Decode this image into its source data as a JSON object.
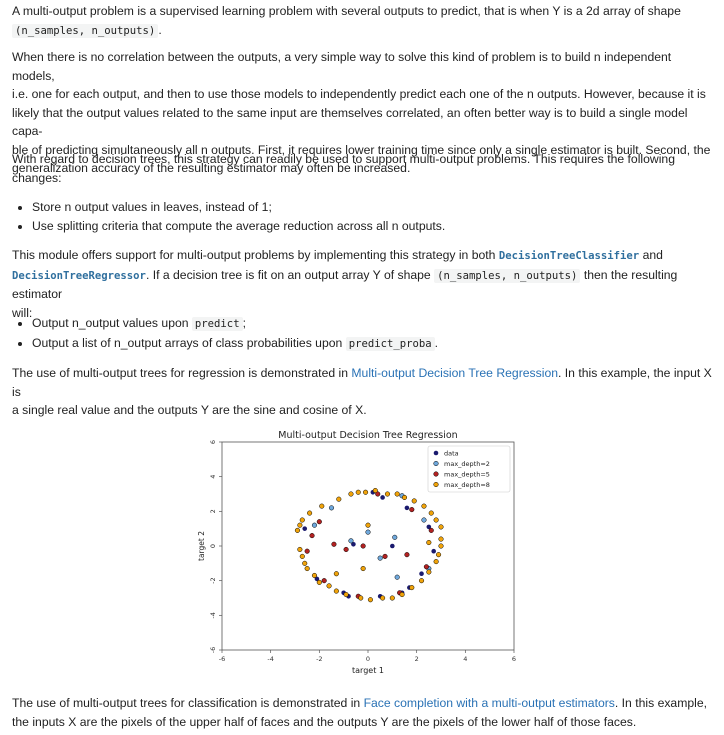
{
  "p1": {
    "text": "A multi-output problem is a supervised learning problem with several outputs to predict, that is when Y is a 2d array of shape",
    "code": "(n_samples, n_outputs)",
    "end": "."
  },
  "p2": {
    "l1": "When there is no correlation between the outputs, a very simple way to solve this kind of problem is to build n independent models,",
    "l2": "i.e. one for each output, and then to use those models to independently predict each one of the n outputs. However, because it is",
    "l3": "likely that the output values related to the same input are themselves correlated, an often better way is to build a single model capa-",
    "l4": "ble of predicting simultaneously all n outputs. First, it requires lower training time since only a single estimator is built. Second, the",
    "l5": "generalization accuracy of the resulting estimator may often be increased."
  },
  "p3": {
    "l1": "With regard to decision trees, this strategy can readily be used to support multi-output problems. This requires the following",
    "l2": "changes:"
  },
  "list1": [
    "Store n output values in leaves, instead of 1;",
    "Use splitting criteria that compute the average reduction across all n outputs."
  ],
  "p4": {
    "t1": "This module offers support for multi-output problems by implementing this strategy in both",
    "ref1": "DecisionTreeClassifier",
    "t2": "and",
    "ref2": "DecisionTreeRegressor",
    "t3": ". If a decision tree is fit on an output array Y of shape",
    "code": "(n_samples, n_outputs)",
    "t4": "then the resulting estimator",
    "t5": "will:"
  },
  "list2": [
    {
      "text": "Output n_output values upon",
      "code": "predict",
      "end": ";"
    },
    {
      "text": "Output a list of n_output arrays of class probabilities upon",
      "code": "predict_proba",
      "end": "."
    }
  ],
  "p5": {
    "t1": "The use of multi-output trees for regression is demonstrated in",
    "link": "Multi-output Decision Tree Regression",
    "t2": ". In this example, the input X is",
    "l2": "a single real value and the outputs Y are the sine and cosine of X."
  },
  "p6": {
    "t1": "The use of multi-output trees for classification is demonstrated in",
    "link": "Face completion with a multi-output estimators",
    "t2": ". In this example,",
    "l2": "the inputs X are the pixels of the upper half of faces and the outputs Y are the pixels of the lower half of those faces."
  },
  "chart_data": {
    "type": "scatter",
    "title": "Multi-output Decision Tree Regression",
    "xlabel": "target 1",
    "ylabel": "target 2",
    "xlim": [
      -6,
      6
    ],
    "ylim": [
      -6,
      6
    ],
    "xticks": [
      "-6",
      "-4",
      "-2",
      "0",
      "2",
      "4",
      "6"
    ],
    "yticks": [
      "-6",
      "-4",
      "-2",
      "0",
      "2",
      "4",
      "6"
    ],
    "legend_position": "top-right",
    "series": [
      {
        "name": "data",
        "color": "#1a1a6e",
        "points": [
          [
            0.2,
            3.1
          ],
          [
            0.6,
            2.8
          ],
          [
            1.6,
            2.2
          ],
          [
            2.5,
            1.1
          ],
          [
            -2.6,
            1.0
          ],
          [
            -2.1,
            -1.9
          ],
          [
            -1.0,
            -2.7
          ],
          [
            0.5,
            -2.9
          ],
          [
            1.4,
            -2.7
          ],
          [
            2.2,
            -1.6
          ],
          [
            -0.8,
            -2.9
          ],
          [
            1.7,
            -2.4
          ],
          [
            2.7,
            -0.3
          ],
          [
            -0.6,
            0.1
          ],
          [
            1.0,
            0.0
          ]
        ]
      },
      {
        "name": "max_depth=2",
        "color": "#6fa8dc",
        "points": [
          [
            -2.2,
            1.2
          ],
          [
            0.0,
            0.8
          ],
          [
            0.5,
            -0.7
          ],
          [
            1.2,
            -1.8
          ],
          [
            2.3,
            1.5
          ],
          [
            -1.5,
            2.2
          ],
          [
            -0.7,
            0.3
          ],
          [
            1.1,
            0.5
          ],
          [
            1.4,
            2.9
          ],
          [
            2.5,
            -1.3
          ]
        ]
      },
      {
        "name": "max_depth=5",
        "color": "#b22222",
        "points": [
          [
            -2.3,
            0.6
          ],
          [
            -2.0,
            1.4
          ],
          [
            0.4,
            3.0
          ],
          [
            1.8,
            2.1
          ],
          [
            2.6,
            0.9
          ],
          [
            2.4,
            -1.2
          ],
          [
            1.3,
            -2.7
          ],
          [
            -0.4,
            -2.9
          ],
          [
            -1.8,
            -2.0
          ],
          [
            -1.4,
            0.1
          ],
          [
            -0.9,
            -0.2
          ],
          [
            -0.2,
            0.0
          ],
          [
            0.7,
            -0.6
          ],
          [
            1.6,
            -0.5
          ],
          [
            -2.5,
            -0.3
          ]
        ]
      },
      {
        "name": "max_depth=8",
        "color": "#f0a30a",
        "points": [
          [
            -2.8,
            -0.2
          ],
          [
            -2.7,
            -0.6
          ],
          [
            -2.6,
            -1.0
          ],
          [
            -2.5,
            -1.3
          ],
          [
            -2.2,
            -1.7
          ],
          [
            -2.9,
            0.9
          ],
          [
            -2.8,
            1.2
          ],
          [
            -2.7,
            1.5
          ],
          [
            -2.4,
            1.9
          ],
          [
            -1.9,
            2.3
          ],
          [
            -1.2,
            2.7
          ],
          [
            -0.7,
            3.0
          ],
          [
            -0.4,
            3.1
          ],
          [
            -0.1,
            3.1
          ],
          [
            0.3,
            3.2
          ],
          [
            0.8,
            3.0
          ],
          [
            1.2,
            3.0
          ],
          [
            1.5,
            2.8
          ],
          [
            1.9,
            2.6
          ],
          [
            2.3,
            2.3
          ],
          [
            2.6,
            1.9
          ],
          [
            2.8,
            1.5
          ],
          [
            3.0,
            1.1
          ],
          [
            3.0,
            0.4
          ],
          [
            3.0,
            0.0
          ],
          [
            2.9,
            -0.5
          ],
          [
            2.8,
            -0.9
          ],
          [
            2.5,
            -1.5
          ],
          [
            2.2,
            -2.0
          ],
          [
            1.8,
            -2.4
          ],
          [
            1.4,
            -2.8
          ],
          [
            1.0,
            -3.0
          ],
          [
            0.6,
            -3.0
          ],
          [
            0.1,
            -3.1
          ],
          [
            -0.3,
            -3.0
          ],
          [
            -0.9,
            -2.8
          ],
          [
            -1.3,
            -2.6
          ],
          [
            -1.6,
            -2.3
          ],
          [
            -2.0,
            -2.1
          ],
          [
            -1.3,
            -1.6
          ],
          [
            -0.2,
            -1.3
          ],
          [
            0.0,
            1.2
          ],
          [
            2.5,
            0.2
          ]
        ]
      }
    ]
  }
}
